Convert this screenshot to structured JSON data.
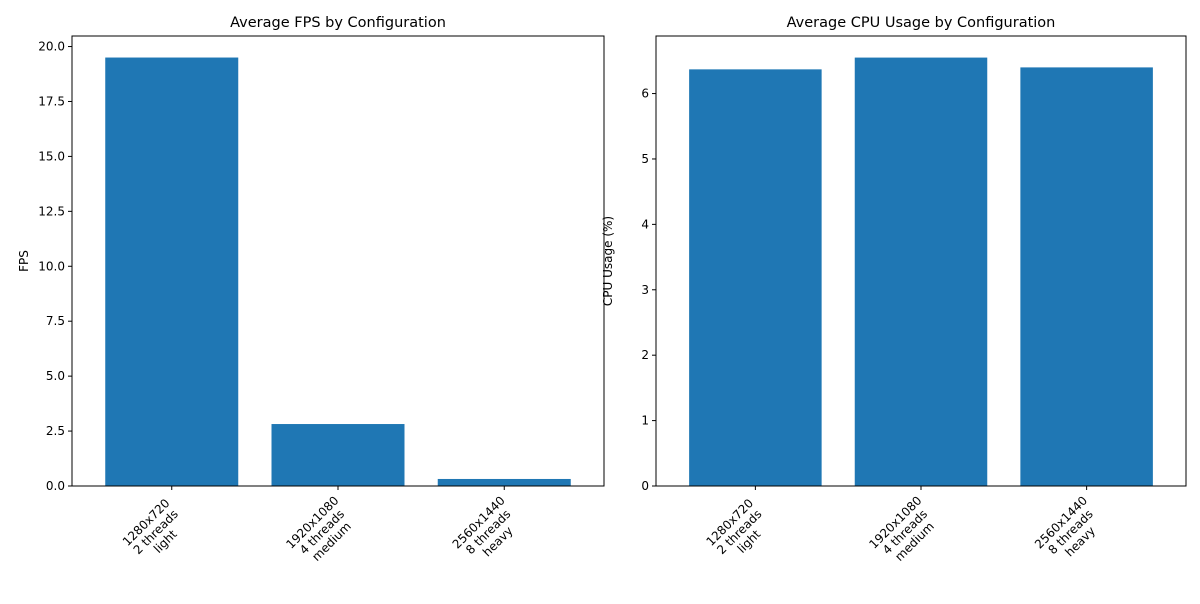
{
  "chart_data": [
    {
      "type": "bar",
      "title": "Average FPS by Configuration",
      "xlabel": "",
      "ylabel": "FPS",
      "categories": [
        [
          "1280x720",
          "2 threads",
          "light"
        ],
        [
          "1920x1080",
          "4 threads",
          "medium"
        ],
        [
          "2560x1440",
          "8 threads",
          "heavy"
        ]
      ],
      "values": [
        19.5,
        2.82,
        0.32
      ],
      "ylim": [
        0,
        20.48
      ],
      "yticks": [
        0.0,
        2.5,
        5.0,
        7.5,
        10.0,
        12.5,
        15.0,
        17.5,
        20.0
      ],
      "ytick_labels": [
        "0.0",
        "2.5",
        "5.0",
        "7.5",
        "10.0",
        "12.5",
        "15.0",
        "17.5",
        "20.0"
      ],
      "bar_color": "#1f77b4",
      "grid": false,
      "xtick_rotation": 45
    },
    {
      "type": "bar",
      "title": "Average CPU Usage by Configuration",
      "xlabel": "",
      "ylabel": "CPU Usage (%)",
      "categories": [
        [
          "1280x720",
          "2 threads",
          "light"
        ],
        [
          "1920x1080",
          "4 threads",
          "medium"
        ],
        [
          "2560x1440",
          "8 threads",
          "heavy"
        ]
      ],
      "values": [
        6.37,
        6.55,
        6.4
      ],
      "ylim": [
        0,
        6.88
      ],
      "yticks": [
        0,
        1,
        2,
        3,
        4,
        5,
        6
      ],
      "ytick_labels": [
        "0",
        "1",
        "2",
        "3",
        "4",
        "5",
        "6"
      ],
      "bar_color": "#1f77b4",
      "grid": false,
      "xtick_rotation": 45
    }
  ]
}
